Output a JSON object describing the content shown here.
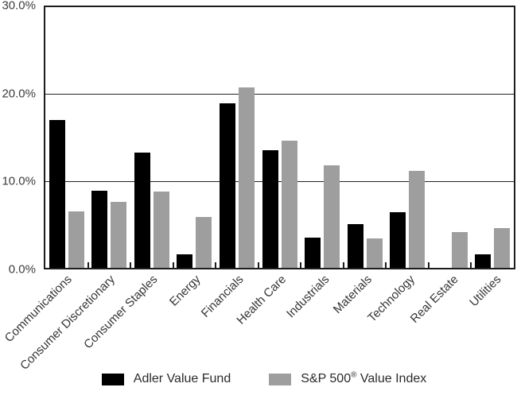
{
  "chart_data": {
    "type": "bar",
    "categories": [
      "Communications",
      "Consumer Discretionary",
      "Consumer Staples",
      "Energy",
      "Financials",
      "Health Care",
      "Industrials",
      "Materials",
      "Technology",
      "Real Estate",
      "Utilities"
    ],
    "series": [
      {
        "name": "Adler Value Fund",
        "color": "#000000",
        "values": [
          17.0,
          8.9,
          13.3,
          1.6,
          18.9,
          13.5,
          3.5,
          5.0,
          6.4,
          0.0,
          1.6
        ]
      },
      {
        "name": "S&P 500® Value Index",
        "color": "#9e9e9e",
        "values": [
          6.5,
          7.6,
          8.8,
          5.9,
          20.8,
          14.6,
          11.8,
          3.4,
          11.2,
          4.1,
          4.6
        ]
      }
    ],
    "ylim": [
      0,
      30
    ],
    "yticks": [
      {
        "label": "30.0%",
        "value": 30
      },
      {
        "label": "20.0%",
        "value": 20
      },
      {
        "label": "10.0%",
        "value": 10
      },
      {
        "label": "0.0%",
        "value": 0
      }
    ],
    "gridlines": [
      20,
      10
    ],
    "grid": true,
    "legend_position": "bottom",
    "title": ""
  },
  "legend": {
    "items": [
      {
        "label": "Adler Value Fund",
        "label_pre": "Adler Value Fund",
        "label_sup": "",
        "label_post": "",
        "color": "#000000"
      },
      {
        "label": "S&P 500® Value Index",
        "label_pre": "S&P 500",
        "label_sup": "®",
        "label_post": " Value Index",
        "color": "#9e9e9e"
      }
    ]
  },
  "colors": {
    "background": "#ffffff",
    "axis": "#1c1c1c",
    "gridline": "#242424",
    "tick_label_text": "#3c3c3c",
    "category_label_text": "#353535",
    "legend_text": "#2b2b2b",
    "series_adler": "#000000",
    "series_sp500": "#9e9e9e"
  }
}
